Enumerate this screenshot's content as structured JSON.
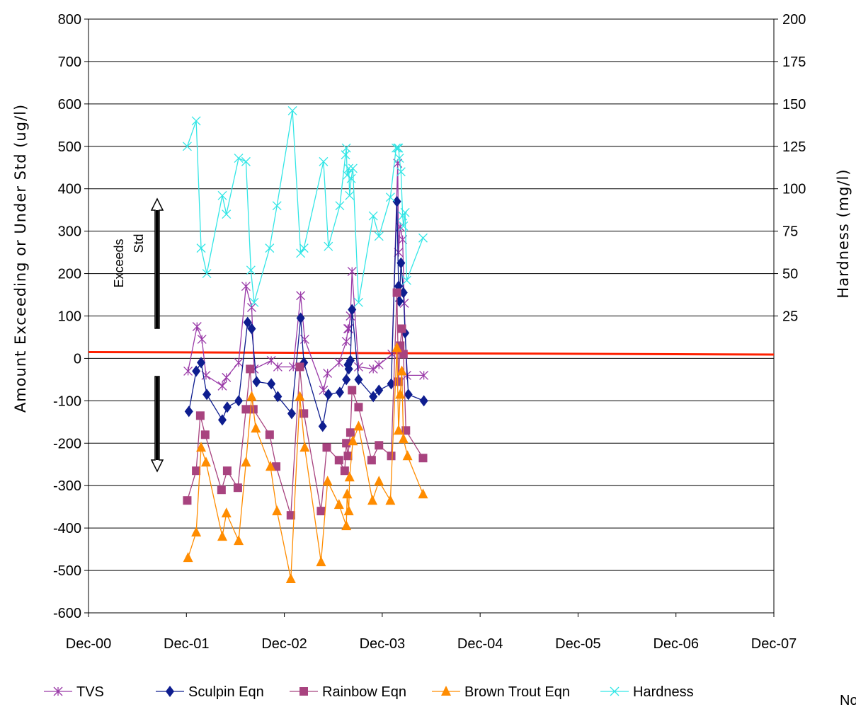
{
  "chart_data": {
    "type": "line",
    "title": "",
    "ylabel_left": "Amount   Exceeding   or   Under   Std   (ug/l)",
    "ylabel_right": "Hardness   (mg/l)",
    "xlabel": "",
    "x_ticks": [
      "Dec-00",
      "Dec-01",
      "Dec-02",
      "Dec-03",
      "Dec-04",
      "Dec-05",
      "Dec-06",
      "Dec-07"
    ],
    "y_left_ticks": [
      "800",
      "700",
      "600",
      "500",
      "400",
      "300",
      "200",
      "100",
      "0",
      "-100",
      "-200",
      "-300",
      "-400",
      "-500",
      "-600"
    ],
    "y_right_ticks": [
      "200",
      "175",
      "150",
      "125",
      "100",
      "75",
      "50",
      "25"
    ],
    "ylim_left": [
      -600,
      800
    ],
    "ylim_right": [
      0,
      200
    ],
    "grid": true,
    "legend_position": "bottom",
    "annotations": {
      "exceeds": [
        "Exceeds",
        "Std"
      ],
      "cut_off_label": "No"
    },
    "threshold_line": {
      "y": 15,
      "color": "#ff2000"
    },
    "series": [
      {
        "name": "TVS",
        "marker": "star",
        "color": "#9a3aa8",
        "points": [
          [
            12.2,
            -30
          ],
          [
            13.3,
            75
          ],
          [
            13.9,
            45
          ],
          [
            14.4,
            -40
          ],
          [
            16.4,
            -65
          ],
          [
            16.9,
            -45
          ],
          [
            18.4,
            -10
          ],
          [
            19.3,
            170
          ],
          [
            20.0,
            120
          ],
          [
            20.3,
            -25
          ],
          [
            22.4,
            -5
          ],
          [
            23.2,
            -20
          ],
          [
            25.1,
            -20
          ],
          [
            26.0,
            148
          ],
          [
            26.5,
            45
          ],
          [
            28.8,
            -75
          ],
          [
            29.3,
            -35
          ],
          [
            30.7,
            -10
          ],
          [
            31.6,
            40
          ],
          [
            31.8,
            70
          ],
          [
            31.9,
            70
          ],
          [
            32.1,
            100
          ],
          [
            32.3,
            205
          ],
          [
            33.1,
            -20
          ],
          [
            34.9,
            -25
          ],
          [
            35.6,
            -15
          ],
          [
            37.2,
            10
          ],
          [
            37.9,
            460
          ],
          [
            38.0,
            250
          ],
          [
            38.2,
            310
          ],
          [
            38.5,
            280
          ],
          [
            38.7,
            130
          ],
          [
            39.0,
            -40
          ],
          [
            41.1,
            -40
          ]
        ]
      },
      {
        "name": "Sculpin Eqn",
        "marker": "diamond",
        "color": "#0e1d8f",
        "points": [
          [
            12.3,
            -125
          ],
          [
            13.2,
            -30
          ],
          [
            13.8,
            -10
          ],
          [
            14.5,
            -85
          ],
          [
            16.4,
            -145
          ],
          [
            17.0,
            -115
          ],
          [
            18.4,
            -100
          ],
          [
            19.5,
            85
          ],
          [
            20.0,
            70
          ],
          [
            20.6,
            -55
          ],
          [
            22.4,
            -60
          ],
          [
            23.2,
            -90
          ],
          [
            24.9,
            -130
          ],
          [
            26.0,
            95
          ],
          [
            26.4,
            -10
          ],
          [
            28.7,
            -160
          ],
          [
            29.4,
            -85
          ],
          [
            30.8,
            -80
          ],
          [
            31.6,
            -50
          ],
          [
            31.8,
            -15
          ],
          [
            31.9,
            -25
          ],
          [
            32.1,
            -5
          ],
          [
            32.3,
            115
          ],
          [
            33.1,
            -50
          ],
          [
            34.9,
            -90
          ],
          [
            35.6,
            -75
          ],
          [
            37.1,
            -60
          ],
          [
            37.8,
            370
          ],
          [
            38.0,
            170
          ],
          [
            38.1,
            135
          ],
          [
            38.3,
            225
          ],
          [
            38.6,
            155
          ],
          [
            38.8,
            60
          ],
          [
            39.2,
            -85
          ],
          [
            41.1,
            -100
          ]
        ]
      },
      {
        "name": "Rainbow Eqn",
        "marker": "square",
        "color": "#a8437f",
        "points": [
          [
            12.1,
            -335
          ],
          [
            13.2,
            -265
          ],
          [
            13.7,
            -135
          ],
          [
            14.3,
            -180
          ],
          [
            16.3,
            -310
          ],
          [
            17.0,
            -265
          ],
          [
            18.3,
            -305
          ],
          [
            19.3,
            -120
          ],
          [
            19.8,
            -25
          ],
          [
            20.2,
            -120
          ],
          [
            22.2,
            -180
          ],
          [
            23.0,
            -255
          ],
          [
            24.8,
            -370
          ],
          [
            25.9,
            -20
          ],
          [
            26.4,
            -130
          ],
          [
            28.5,
            -360
          ],
          [
            29.2,
            -210
          ],
          [
            30.7,
            -240
          ],
          [
            31.4,
            -265
          ],
          [
            31.6,
            -200
          ],
          [
            31.8,
            -230
          ],
          [
            32.1,
            -175
          ],
          [
            32.3,
            -75
          ],
          [
            33.1,
            -115
          ],
          [
            34.7,
            -240
          ],
          [
            35.6,
            -205
          ],
          [
            37.1,
            -230
          ],
          [
            37.8,
            155
          ],
          [
            38.0,
            -55
          ],
          [
            38.2,
            30
          ],
          [
            38.4,
            70
          ],
          [
            38.6,
            10
          ],
          [
            38.9,
            -170
          ],
          [
            41.0,
            -235
          ]
        ]
      },
      {
        "name": "Brown Trout Eqn",
        "marker": "triangle",
        "color": "#ff8c00",
        "points": [
          [
            12.2,
            -470
          ],
          [
            13.2,
            -410
          ],
          [
            13.8,
            -210
          ],
          [
            14.4,
            -245
          ],
          [
            16.4,
            -420
          ],
          [
            16.9,
            -365
          ],
          [
            18.4,
            -430
          ],
          [
            19.3,
            -245
          ],
          [
            20.0,
            -90
          ],
          [
            20.5,
            -165
          ],
          [
            22.3,
            -255
          ],
          [
            23.1,
            -360
          ],
          [
            24.8,
            -520
          ],
          [
            25.9,
            -90
          ],
          [
            26.5,
            -210
          ],
          [
            28.5,
            -480
          ],
          [
            29.3,
            -290
          ],
          [
            30.7,
            -345
          ],
          [
            31.6,
            -395
          ],
          [
            31.7,
            -320
          ],
          [
            31.9,
            -360
          ],
          [
            32.0,
            -280
          ],
          [
            32.4,
            -195
          ],
          [
            33.1,
            -160
          ],
          [
            34.8,
            -335
          ],
          [
            35.6,
            -290
          ],
          [
            37.0,
            -335
          ],
          [
            37.8,
            25
          ],
          [
            38.0,
            -170
          ],
          [
            38.2,
            -85
          ],
          [
            38.4,
            -30
          ],
          [
            38.6,
            -190
          ],
          [
            39.1,
            -230
          ],
          [
            41.0,
            -320
          ]
        ]
      },
      {
        "name": "Hardness",
        "marker": "x",
        "color": "#33e6e6",
        "points": [
          [
            12.1,
            125
          ],
          [
            13.2,
            140
          ],
          [
            13.8,
            65
          ],
          [
            14.5,
            50
          ],
          [
            16.4,
            96
          ],
          [
            16.9,
            85
          ],
          [
            18.4,
            118
          ],
          [
            19.3,
            116
          ],
          [
            19.9,
            52
          ],
          [
            20.3,
            33
          ],
          [
            22.2,
            65
          ],
          [
            23.1,
            90
          ],
          [
            25.0,
            146
          ],
          [
            26.0,
            62
          ],
          [
            26.4,
            65
          ],
          [
            28.8,
            116
          ],
          [
            29.4,
            66
          ],
          [
            30.8,
            90
          ],
          [
            31.5,
            120
          ],
          [
            31.6,
            124
          ],
          [
            31.7,
            108
          ],
          [
            31.9,
            112
          ],
          [
            32.0,
            96
          ],
          [
            32.2,
            106
          ],
          [
            32.4,
            112
          ],
          [
            33.1,
            33
          ],
          [
            34.9,
            84
          ],
          [
            35.6,
            72
          ],
          [
            37.0,
            95
          ],
          [
            37.7,
            124
          ],
          [
            37.9,
            124
          ],
          [
            38.0,
            124
          ],
          [
            38.1,
            118
          ],
          [
            38.3,
            110
          ],
          [
            38.5,
            84
          ],
          [
            38.6,
            78
          ],
          [
            38.8,
            86
          ],
          [
            39.0,
            46
          ],
          [
            41.0,
            71
          ]
        ]
      }
    ]
  }
}
